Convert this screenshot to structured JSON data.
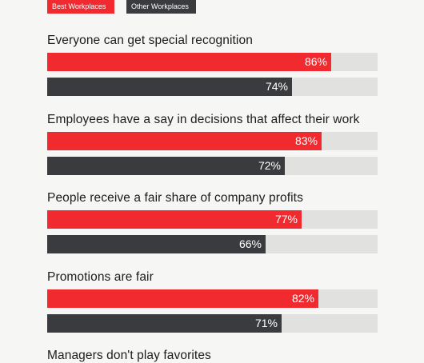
{
  "colors": {
    "best": "#f02a2f",
    "other": "#3a3b3f",
    "track": "#e1e1df"
  },
  "chart_data": {
    "type": "bar",
    "orientation": "horizontal",
    "xlim": [
      0,
      100
    ],
    "legend_placement": "top-left",
    "series": [
      {
        "name": "Best Workplaces",
        "color": "#f02a2f"
      },
      {
        "name": "Other Workplaces",
        "color": "#3a3b3f"
      }
    ],
    "categories": [
      {
        "label": "Everyone can get special recognition",
        "values": [
          86,
          74
        ],
        "display": [
          "86%",
          "74%"
        ]
      },
      {
        "label": "Employees have a say in decisions that affect their work",
        "values": [
          83,
          72
        ],
        "display": [
          "83%",
          "72%"
        ]
      },
      {
        "label": "People receive a fair share of company profits",
        "values": [
          77,
          66
        ],
        "display": [
          "77%",
          "66%"
        ]
      },
      {
        "label": "Promotions are fair",
        "values": [
          82,
          71
        ],
        "display": [
          "82%",
          "71%"
        ]
      },
      {
        "label": "Managers don't play favorites",
        "values": [],
        "display": []
      }
    ]
  }
}
